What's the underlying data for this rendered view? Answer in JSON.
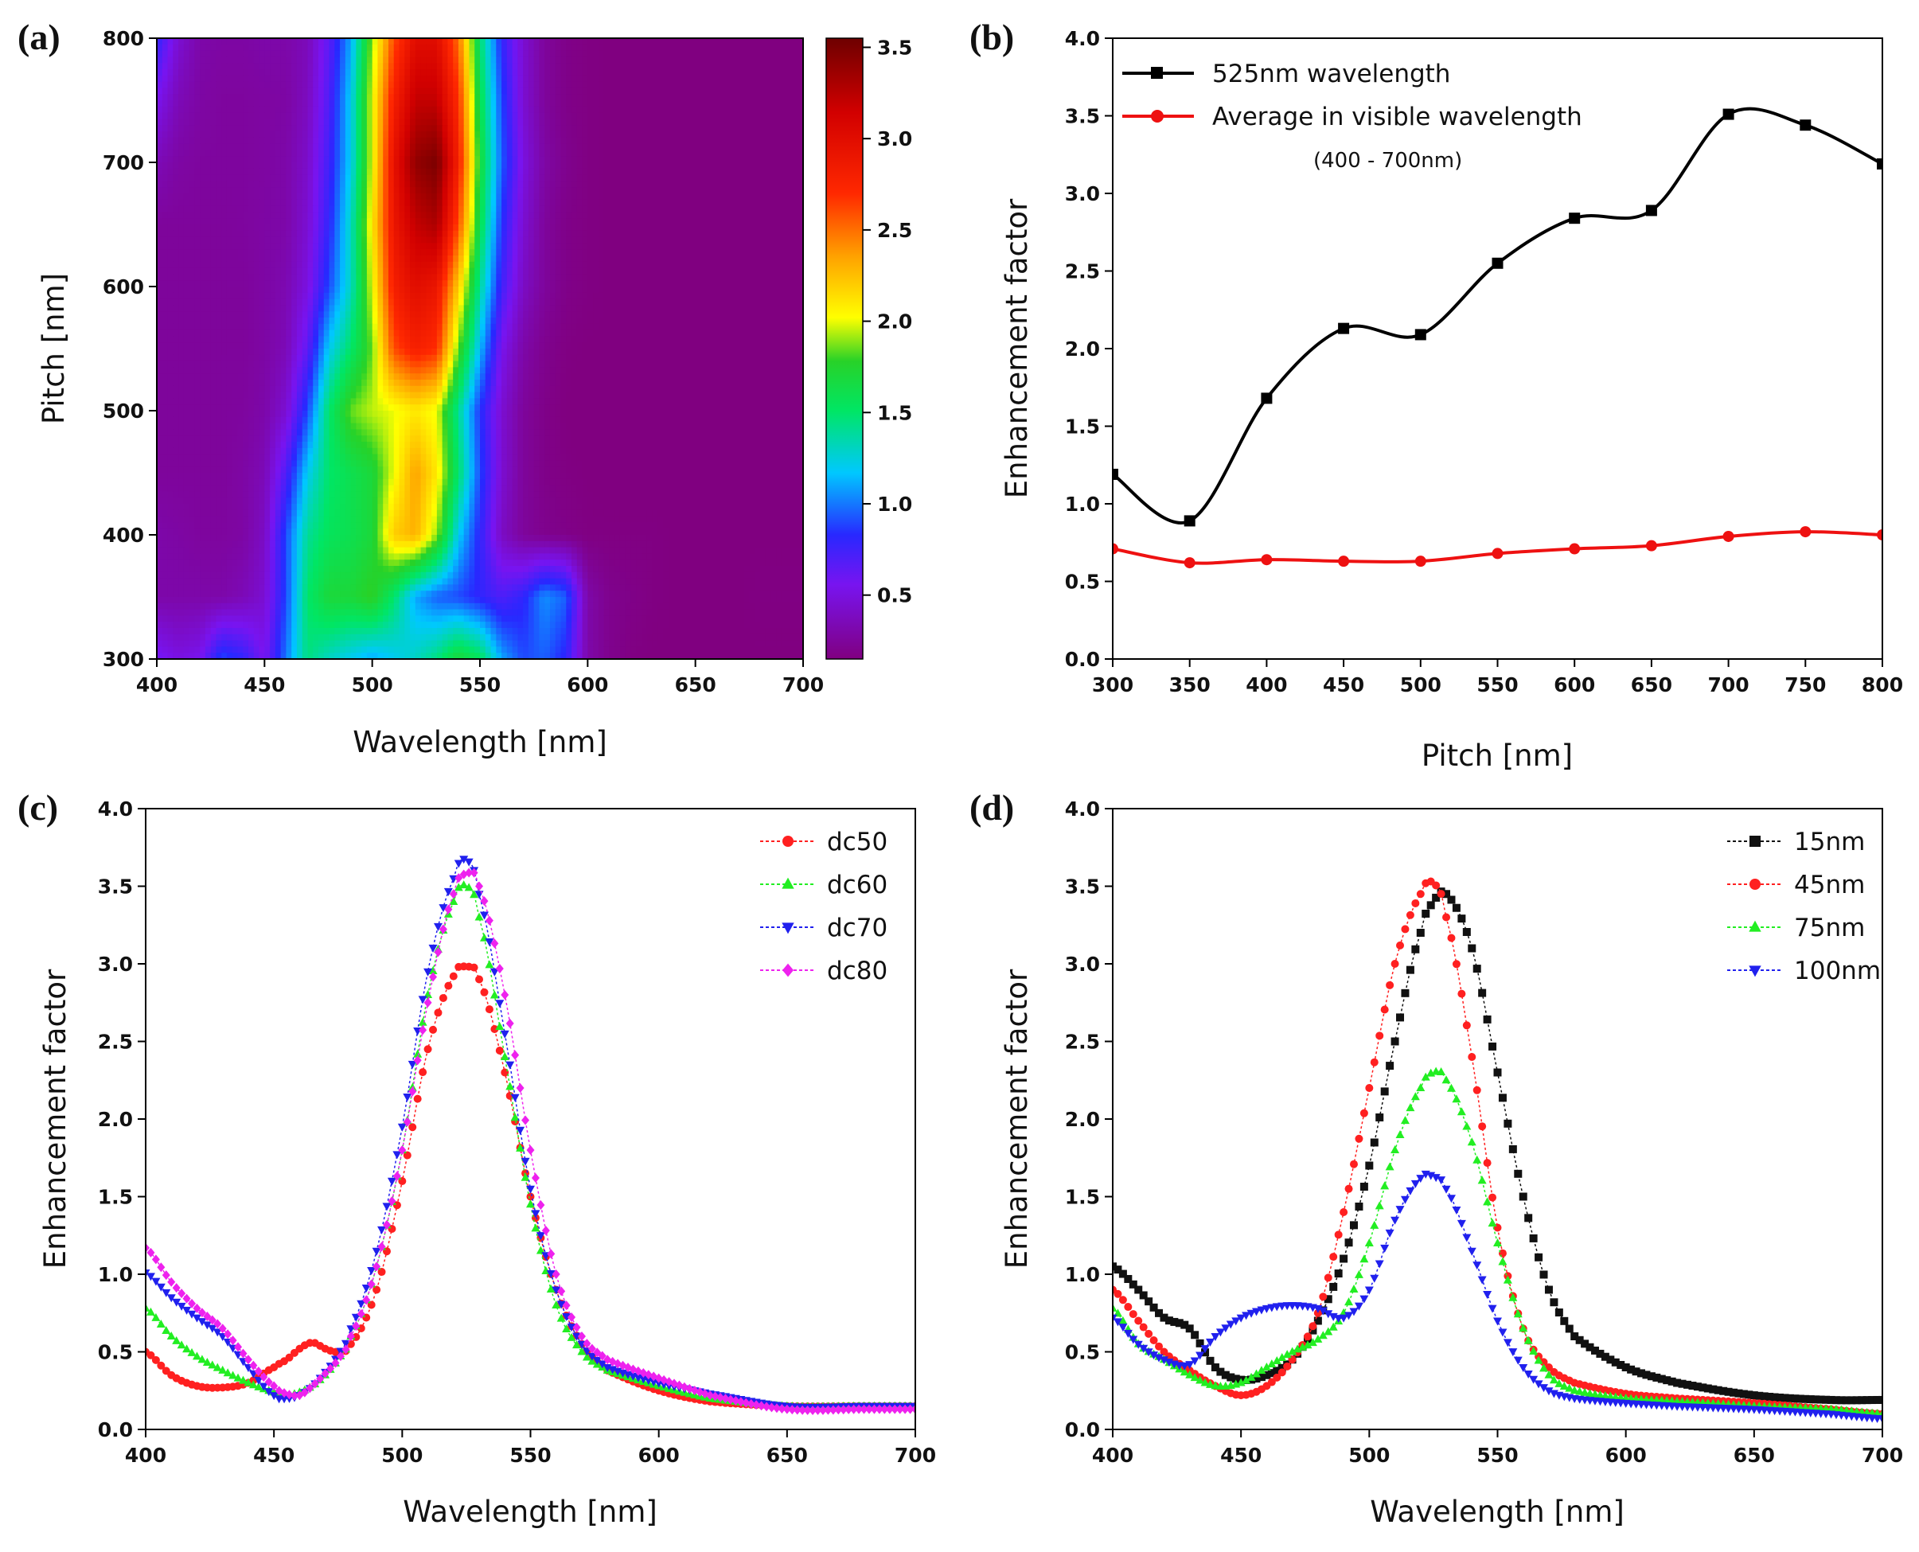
{
  "chart_data": [
    {
      "panel": "(a)",
      "type": "heatmap",
      "xlabel": "Wavelength [nm]",
      "ylabel": "Pitch [nm]",
      "xlim": [
        400,
        700
      ],
      "ylim": [
        300,
        800
      ],
      "xticks": [
        "400",
        "450",
        "500",
        "550",
        "600",
        "650",
        "700"
      ],
      "yticks": [
        "300",
        "400",
        "500",
        "600",
        "700",
        "800"
      ],
      "colorbar_ticks": [
        "0.5",
        "1.0",
        "1.5",
        "2.0",
        "2.5",
        "3.0",
        "3.5"
      ],
      "colorbar_range": [
        0.15,
        3.55
      ],
      "wavelengths": [
        400,
        410,
        420,
        430,
        440,
        450,
        460,
        470,
        480,
        490,
        500,
        510,
        520,
        530,
        540,
        550,
        560,
        570,
        580,
        590,
        600,
        610,
        620,
        630,
        640,
        650,
        660,
        670,
        680,
        690,
        700
      ],
      "pitches": [
        300,
        350,
        400,
        450,
        500,
        550,
        600,
        650,
        700,
        750,
        800
      ],
      "z": [
        [
          0.6,
          0.5,
          0.55,
          0.9,
          0.8,
          0.55,
          1.0,
          1.45,
          1.3,
          1.2,
          1.1,
          1.2,
          1.3,
          1.45,
          1.7,
          1.55,
          1.1,
          0.9,
          0.95,
          0.8,
          0.3,
          0.2,
          0.16,
          0.15,
          0.15,
          0.15,
          0.15,
          0.15,
          0.15,
          0.15,
          0.15
        ],
        [
          0.3,
          0.3,
          0.3,
          0.3,
          0.35,
          0.45,
          0.9,
          1.5,
          1.7,
          1.7,
          1.8,
          1.5,
          1.1,
          0.95,
          0.9,
          0.8,
          0.7,
          0.8,
          1.05,
          0.95,
          0.3,
          0.2,
          0.18,
          0.16,
          0.15,
          0.15,
          0.15,
          0.15,
          0.16,
          0.16,
          0.16
        ],
        [
          0.3,
          0.28,
          0.26,
          0.26,
          0.28,
          0.4,
          0.9,
          1.4,
          1.55,
          1.6,
          1.7,
          2.2,
          2.3,
          1.9,
          1.2,
          0.8,
          0.4,
          0.25,
          0.2,
          0.18,
          0.16,
          0.16,
          0.16,
          0.16,
          0.15,
          0.15,
          0.15,
          0.15,
          0.15,
          0.15,
          0.15
        ],
        [
          0.25,
          0.25,
          0.25,
          0.25,
          0.28,
          0.35,
          0.7,
          1.2,
          1.5,
          1.6,
          1.7,
          2.0,
          2.35,
          2.1,
          1.5,
          0.9,
          0.45,
          0.25,
          0.18,
          0.16,
          0.15,
          0.14,
          0.14,
          0.14,
          0.14,
          0.14,
          0.14,
          0.14,
          0.14,
          0.14,
          0.14
        ],
        [
          0.25,
          0.25,
          0.25,
          0.25,
          0.26,
          0.3,
          0.45,
          0.9,
          1.5,
          1.85,
          1.95,
          2.0,
          2.1,
          2.0,
          1.4,
          0.85,
          0.45,
          0.25,
          0.18,
          0.15,
          0.14,
          0.14,
          0.14,
          0.14,
          0.14,
          0.14,
          0.14,
          0.14,
          0.14,
          0.14,
          0.14
        ],
        [
          0.25,
          0.25,
          0.25,
          0.25,
          0.25,
          0.28,
          0.35,
          0.65,
          1.2,
          1.5,
          1.85,
          2.6,
          2.8,
          2.7,
          1.85,
          1.15,
          0.55,
          0.3,
          0.2,
          0.16,
          0.15,
          0.15,
          0.15,
          0.15,
          0.15,
          0.15,
          0.15,
          0.15,
          0.15,
          0.15,
          0.15
        ],
        [
          0.25,
          0.25,
          0.25,
          0.25,
          0.25,
          0.28,
          0.33,
          0.5,
          0.9,
          1.3,
          2.0,
          2.8,
          3.0,
          2.9,
          2.2,
          1.4,
          0.75,
          0.4,
          0.25,
          0.18,
          0.16,
          0.15,
          0.15,
          0.15,
          0.15,
          0.15,
          0.15,
          0.15,
          0.15,
          0.15,
          0.15
        ],
        [
          0.25,
          0.25,
          0.25,
          0.25,
          0.26,
          0.28,
          0.3,
          0.45,
          0.8,
          1.3,
          2.1,
          2.9,
          3.2,
          3.3,
          2.6,
          1.6,
          0.85,
          0.45,
          0.25,
          0.18,
          0.16,
          0.15,
          0.15,
          0.15,
          0.15,
          0.15,
          0.15,
          0.15,
          0.15,
          0.15,
          0.15
        ],
        [
          0.35,
          0.28,
          0.26,
          0.26,
          0.26,
          0.27,
          0.3,
          0.42,
          0.75,
          1.2,
          2.0,
          2.95,
          3.4,
          3.5,
          2.8,
          1.7,
          0.95,
          0.5,
          0.28,
          0.2,
          0.16,
          0.15,
          0.15,
          0.15,
          0.15,
          0.15,
          0.15,
          0.15,
          0.15,
          0.15,
          0.15
        ],
        [
          0.55,
          0.35,
          0.28,
          0.26,
          0.26,
          0.27,
          0.28,
          0.38,
          0.7,
          1.2,
          2.0,
          2.8,
          3.2,
          3.2,
          2.7,
          1.6,
          0.9,
          0.45,
          0.25,
          0.18,
          0.16,
          0.15,
          0.15,
          0.15,
          0.15,
          0.15,
          0.15,
          0.15,
          0.15,
          0.15,
          0.15
        ],
        [
          0.8,
          0.45,
          0.3,
          0.28,
          0.28,
          0.3,
          0.3,
          0.36,
          0.65,
          1.1,
          1.9,
          2.6,
          3.0,
          3.0,
          2.5,
          1.5,
          0.8,
          0.45,
          0.25,
          0.18,
          0.16,
          0.15,
          0.15,
          0.15,
          0.15,
          0.15,
          0.15,
          0.15,
          0.15,
          0.15,
          0.15
        ]
      ]
    },
    {
      "panel": "(b)",
      "type": "line",
      "xlabel": "Pitch [nm]",
      "ylabel": "Enhancement factor",
      "xlim": [
        300,
        800
      ],
      "ylim": [
        0.0,
        4.0
      ],
      "xticks": [
        "300",
        "350",
        "400",
        "450",
        "500",
        "550",
        "600",
        "650",
        "700",
        "750",
        "800"
      ],
      "yticks": [
        "0.0",
        "0.5",
        "1.0",
        "1.5",
        "2.0",
        "2.5",
        "3.0",
        "3.5",
        "4.0"
      ],
      "x": [
        300,
        350,
        400,
        450,
        500,
        550,
        600,
        650,
        700,
        750,
        800
      ],
      "series": [
        {
          "name": "525nm wavelength",
          "color": "#000000",
          "marker": "square",
          "values": [
            1.19,
            0.89,
            1.68,
            2.13,
            2.09,
            2.55,
            2.84,
            2.89,
            3.51,
            3.44,
            3.19
          ]
        },
        {
          "name": "Average in visible wavelength",
          "color": "#ee1111",
          "marker": "circle",
          "values": [
            0.71,
            0.62,
            0.64,
            0.63,
            0.63,
            0.68,
            0.71,
            0.73,
            0.79,
            0.82,
            0.8
          ]
        }
      ],
      "legend_note": "(400 - 700nm)"
    },
    {
      "panel": "(c)",
      "type": "scatter",
      "xlabel": "Wavelength [nm]",
      "ylabel": "Enhancement factor",
      "xlim": [
        400,
        700
      ],
      "ylim": [
        0.0,
        4.0
      ],
      "xticks": [
        "400",
        "450",
        "500",
        "550",
        "600",
        "650",
        "700"
      ],
      "yticks": [
        "0.0",
        "0.5",
        "1.0",
        "1.5",
        "2.0",
        "2.5",
        "3.0",
        "3.5",
        "4.0"
      ],
      "x": [
        400,
        410,
        420,
        430,
        440,
        450,
        455,
        460,
        465,
        470,
        475,
        480,
        490,
        500,
        510,
        520,
        525,
        530,
        540,
        550,
        560,
        570,
        580,
        600,
        620,
        650,
        680,
        700
      ],
      "series": [
        {
          "name": "dc50",
          "color": "#ff2020",
          "marker": "circle",
          "values": [
            0.5,
            0.35,
            0.28,
            0.27,
            0.3,
            0.4,
            0.45,
            0.52,
            0.56,
            0.52,
            0.5,
            0.55,
            0.9,
            1.6,
            2.45,
            2.92,
            2.98,
            2.9,
            2.3,
            1.5,
            0.9,
            0.55,
            0.38,
            0.25,
            0.18,
            0.15,
            0.15,
            0.15
          ]
        },
        {
          "name": "dc60",
          "color": "#22ee22",
          "marker": "triangle",
          "values": [
            0.78,
            0.6,
            0.47,
            0.38,
            0.3,
            0.24,
            0.22,
            0.24,
            0.28,
            0.35,
            0.45,
            0.6,
            1.05,
            1.8,
            2.8,
            3.4,
            3.5,
            3.3,
            2.4,
            1.45,
            0.8,
            0.5,
            0.38,
            0.28,
            0.2,
            0.15,
            0.15,
            0.15
          ]
        },
        {
          "name": "dc70",
          "color": "#2020ee",
          "marker": "triangle-down",
          "values": [
            1.01,
            0.85,
            0.72,
            0.6,
            0.4,
            0.22,
            0.2,
            0.22,
            0.28,
            0.37,
            0.48,
            0.65,
            1.15,
            1.95,
            2.95,
            3.55,
            3.67,
            3.45,
            2.55,
            1.55,
            0.9,
            0.55,
            0.4,
            0.3,
            0.23,
            0.15,
            0.15,
            0.15
          ]
        },
        {
          "name": "dc80",
          "color": "#ee22ee",
          "marker": "diamond",
          "values": [
            1.17,
            0.95,
            0.78,
            0.65,
            0.45,
            0.28,
            0.23,
            0.22,
            0.28,
            0.36,
            0.45,
            0.6,
            1.05,
            1.8,
            2.75,
            3.45,
            3.58,
            3.5,
            2.8,
            1.8,
            1.0,
            0.6,
            0.45,
            0.33,
            0.22,
            0.13,
            0.13,
            0.13
          ]
        }
      ]
    },
    {
      "panel": "(d)",
      "type": "scatter",
      "xlabel": "Wavelength [nm]",
      "ylabel": "Enhancement factor",
      "xlim": [
        400,
        700
      ],
      "ylim": [
        0.0,
        4.0
      ],
      "xticks": [
        "400",
        "450",
        "500",
        "550",
        "600",
        "650",
        "700"
      ],
      "yticks": [
        "0.0",
        "0.5",
        "1.0",
        "1.5",
        "2.0",
        "2.5",
        "3.0",
        "3.5",
        "4.0"
      ],
      "x": [
        400,
        410,
        420,
        430,
        440,
        450,
        460,
        470,
        480,
        490,
        500,
        510,
        520,
        525,
        530,
        540,
        550,
        560,
        570,
        580,
        600,
        620,
        650,
        680,
        700
      ],
      "series": [
        {
          "name": "15nm",
          "color": "#111111",
          "marker": "square",
          "values": [
            1.05,
            0.9,
            0.72,
            0.65,
            0.4,
            0.32,
            0.35,
            0.45,
            0.7,
            1.1,
            1.7,
            2.5,
            3.2,
            3.4,
            3.45,
            3.1,
            2.3,
            1.5,
            0.9,
            0.6,
            0.4,
            0.3,
            0.22,
            0.19,
            0.19
          ]
        },
        {
          "name": "45nm",
          "color": "#ff2020",
          "marker": "circle",
          "values": [
            0.9,
            0.7,
            0.5,
            0.38,
            0.28,
            0.22,
            0.28,
            0.45,
            0.75,
            1.4,
            2.2,
            3.0,
            3.45,
            3.52,
            3.3,
            2.4,
            1.3,
            0.65,
            0.4,
            0.3,
            0.23,
            0.2,
            0.17,
            0.13,
            0.1
          ]
        },
        {
          "name": "75nm",
          "color": "#22ee22",
          "marker": "triangle",
          "values": [
            0.78,
            0.55,
            0.45,
            0.35,
            0.28,
            0.3,
            0.4,
            0.5,
            0.58,
            0.75,
            1.2,
            1.8,
            2.2,
            2.3,
            2.25,
            1.85,
            1.2,
            0.65,
            0.35,
            0.25,
            0.2,
            0.18,
            0.15,
            0.13,
            0.1
          ]
        },
        {
          "name": "100nm",
          "color": "#2020ee",
          "marker": "triangle-down",
          "values": [
            0.72,
            0.55,
            0.45,
            0.42,
            0.6,
            0.72,
            0.78,
            0.8,
            0.78,
            0.72,
            0.9,
            1.35,
            1.62,
            1.63,
            1.55,
            1.15,
            0.7,
            0.4,
            0.25,
            0.2,
            0.17,
            0.15,
            0.13,
            0.1,
            0.07
          ]
        }
      ]
    }
  ],
  "labels": {
    "panel_a": "(a)",
    "panel_b": "(b)",
    "panel_c": "(c)",
    "panel_d": "(d)"
  }
}
